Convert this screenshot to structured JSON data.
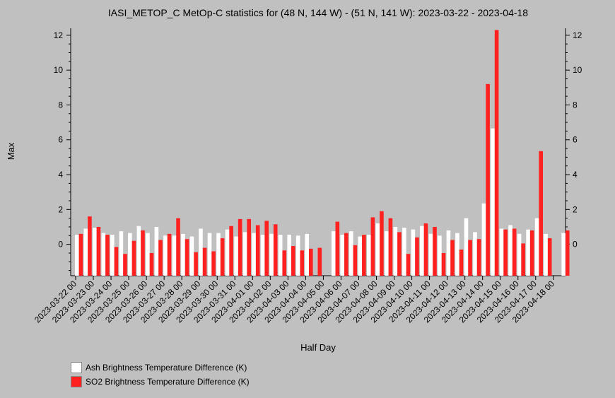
{
  "chart_data": {
    "type": "bar",
    "title": "IASI_METOP_C MetOp-C statistics for (48 N, 144 W) - (51 N, 141 W): 2023-03-22 - 2023-04-18",
    "xlabel": "Half Day",
    "ylabel": "Max",
    "ylim": [
      -1.8,
      12.4
    ],
    "yticks": [
      0,
      2,
      4,
      6,
      8,
      10,
      12
    ],
    "grid": false,
    "legend_position": "bottom-left",
    "x_tick_labels": [
      "2023-03-22 00",
      "2023-03-23 00",
      "2023-03-24 00",
      "2023-03-25 00",
      "2023-03-26 00",
      "2023-03-27 00",
      "2023-03-28 00",
      "2023-03-29 00",
      "2023-03-30 00",
      "2023-03-31 00",
      "2023-04-01 00",
      "2023-04-02 00",
      "2023-04-03 00",
      "2023-04-04 00",
      "2023-04-05 00",
      "2023-04-06 00",
      "2023-04-07 00",
      "2023-04-08 00",
      "2023-04-09 00",
      "2023-04-10 00",
      "2023-04-11 00",
      "2023-04-12 00",
      "2023-04-13 00",
      "2023-04-14 00",
      "2023-04-15 00",
      "2023-04-16 00",
      "2023-04-17 00",
      "2023-04-18 00"
    ],
    "series": [
      {
        "name": "Ash Brightness Temperature Difference (K)",
        "color": "#ffffff",
        "values": [
          0.55,
          0.9,
          0.95,
          0.65,
          0.55,
          0.75,
          0.65,
          1.05,
          0.65,
          1.0,
          0.5,
          0.5,
          0.6,
          0.45,
          0.9,
          0.65,
          0.65,
          0.85,
          0.45,
          0.7,
          0.65,
          0.55,
          0.6,
          0.55,
          0.55,
          0.5,
          0.6,
          null,
          null,
          0.75,
          0.55,
          0.75,
          0.45,
          0.55,
          1.2,
          0.75,
          1.0,
          0.95,
          0.85,
          1.05,
          0.6,
          0.5,
          0.8,
          0.65,
          1.5,
          0.7,
          2.35,
          6.65,
          0.9,
          1.1,
          0.6,
          0.85,
          1.5,
          0.6,
          null,
          0.65
        ],
        "baseline": [
          null,
          null,
          null,
          null,
          null,
          null,
          null,
          null,
          null,
          null,
          null,
          null,
          null,
          null,
          null,
          null,
          null,
          null,
          null,
          null,
          null,
          null,
          null,
          null,
          null,
          null,
          null,
          null,
          null,
          null,
          null,
          null,
          null,
          null,
          null,
          null,
          null,
          null,
          null,
          null,
          null,
          null,
          null,
          null,
          null,
          null,
          null,
          null,
          null,
          null,
          null,
          null,
          null,
          null,
          null,
          null
        ]
      },
      {
        "name": "SO2 Brightness Temperature Difference (K)",
        "color": "#ff2020",
        "values": [
          0.6,
          1.6,
          1.0,
          0.55,
          -0.15,
          -0.55,
          0.2,
          0.8,
          -0.5,
          0.25,
          0.6,
          1.5,
          0.3,
          -0.45,
          -0.2,
          -0.4,
          0.35,
          1.05,
          1.45,
          1.45,
          1.1,
          1.35,
          1.15,
          -0.35,
          -0.1,
          -0.35,
          -0.25,
          -0.2,
          null,
          1.3,
          0.65,
          -0.05,
          0.55,
          1.55,
          1.9,
          1.5,
          0.7,
          -0.55,
          0.4,
          1.2,
          1.0,
          -0.5,
          0.25,
          -0.3,
          0.25,
          0.3,
          9.2,
          12.3,
          0.85,
          0.9,
          0.05,
          0.8,
          5.35,
          0.35,
          null,
          0.8
        ]
      }
    ]
  },
  "legend": {
    "items": [
      {
        "label": "Ash Brightness Temperature Difference (K)",
        "color": "#ffffff"
      },
      {
        "label": "SO2 Brightness Temperature Difference (K)",
        "color": "#ff2020"
      }
    ]
  }
}
